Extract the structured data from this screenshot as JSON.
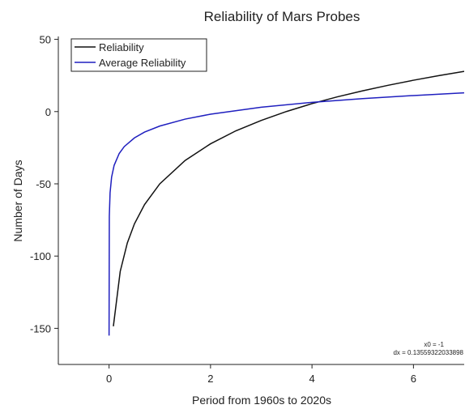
{
  "chart_data": {
    "type": "line",
    "title": "Reliability of Mars Probes",
    "x_label": "Period from 1960s to 2020s",
    "y_label": "Number of Days",
    "annotations": [
      "x0 = -1",
      "dx = 0.13559322033898"
    ],
    "xlim": [
      -1,
      7
    ],
    "ylim": [
      -175,
      52
    ],
    "xticks": [
      0,
      2,
      4,
      6
    ],
    "yticks": [
      -150,
      -100,
      -50,
      0,
      50
    ],
    "legend": "upper left",
    "series": [
      {
        "name": "Reliability",
        "color": "#111111",
        "x": [
          0.085,
          0.22,
          0.36,
          0.5,
          0.7,
          1,
          1.5,
          2,
          2.5,
          3,
          3.5,
          4,
          4.5,
          5,
          5.5,
          6,
          6.5,
          7
        ],
        "values": [
          -148.6,
          -110.6,
          -90.9,
          -77.7,
          -64.3,
          -50,
          -33.8,
          -22.3,
          -13.3,
          -6.1,
          0.1,
          5.5,
          10.2,
          14.4,
          18.2,
          21.7,
          24.9,
          27.8
        ]
      },
      {
        "name": "Average Reliability",
        "color": "#1f1fbf",
        "x": [
          0,
          0.005,
          0.02,
          0.05,
          0.1,
          0.2,
          0.3,
          0.5,
          0.7,
          1,
          1.5,
          2,
          3,
          4,
          5,
          6,
          7
        ],
        "values": [
          -155,
          -72.5,
          -56.2,
          -45.4,
          -37.2,
          -29,
          -24.2,
          -18.2,
          -14.2,
          -10,
          -5.2,
          -1.8,
          3,
          6.4,
          9,
          11.1,
          13
        ]
      }
    ]
  }
}
